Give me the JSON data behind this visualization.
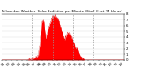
{
  "title": "Milwaukee Weather  Solar Radiation per Minute W/m2 (Last 24 Hours)",
  "bg_color": "#ffffff",
  "plot_bg_color": "#ffffff",
  "fill_color": "#ff0000",
  "line_color": "#dd0000",
  "grid_color": "#999999",
  "ylim": [
    0,
    800
  ],
  "yticks": [
    0,
    100,
    200,
    300,
    400,
    500,
    600,
    700,
    800
  ],
  "ytick_labels": [
    "0",
    "1",
    "2",
    "3",
    "4",
    "5",
    "6",
    "7",
    "8"
  ],
  "num_points": 1440,
  "vline_positions": [
    360,
    600,
    840,
    1080
  ],
  "tick_fontsize": 2.8,
  "title_fontsize": 2.8,
  "figsize": [
    1.6,
    0.87
  ],
  "dpi": 100
}
